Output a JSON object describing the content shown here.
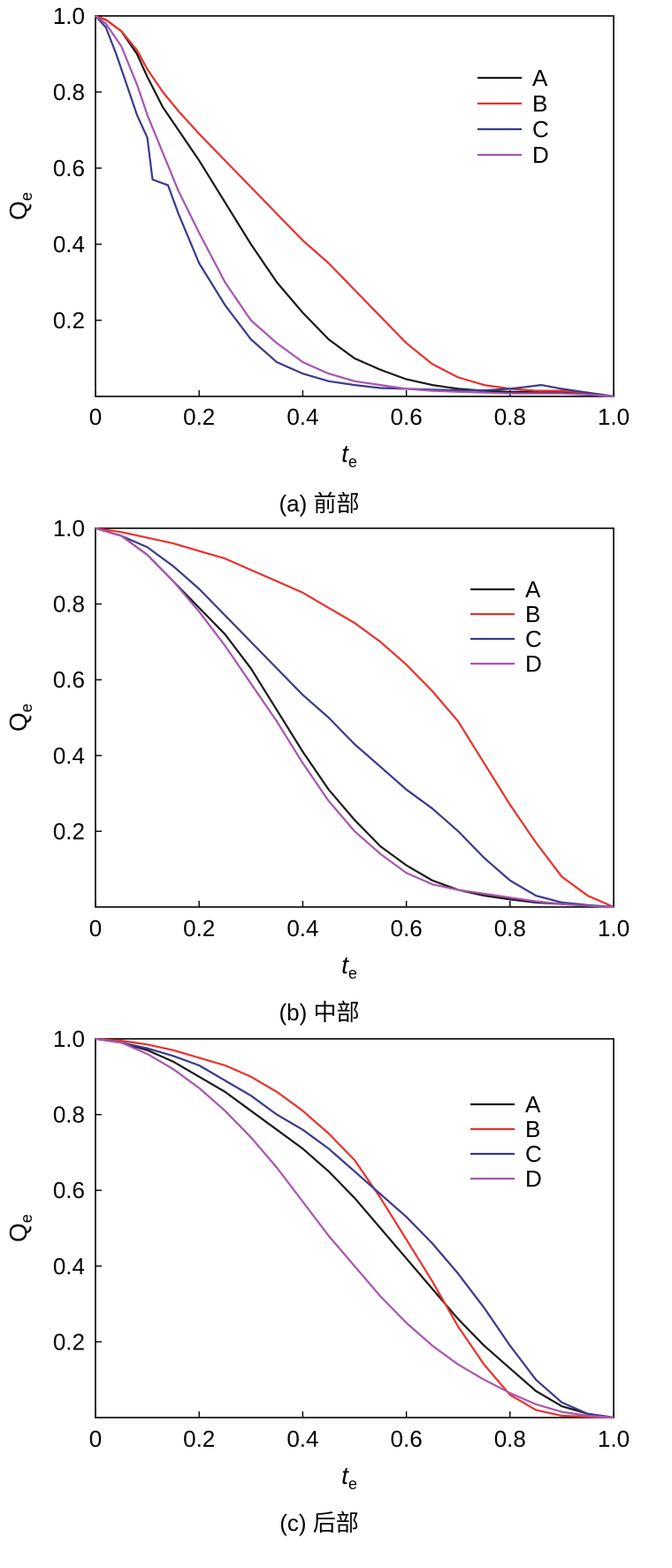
{
  "colors": {
    "A": "#1a1a1a",
    "B": "#e8322b",
    "C": "#3a3a8c",
    "D": "#a855b0"
  },
  "chart_data": [
    {
      "type": "line",
      "caption": "(a) 前部",
      "xlabel": "t",
      "xlabel_sub": "e",
      "ylabel": "Q",
      "ylabel_sub": "e",
      "xlim": [
        0,
        1.0
      ],
      "ylim": [
        0,
        1.0
      ],
      "xticks": [
        "0",
        "0.2",
        "0.4",
        "0.6",
        "0.8",
        "1.0"
      ],
      "yticks": [
        "0.2",
        "0.4",
        "0.6",
        "0.8",
        "1.0"
      ],
      "legend_position": "top-right",
      "series": [
        {
          "name": "A",
          "x": [
            0,
            0.02,
            0.05,
            0.08,
            0.1,
            0.13,
            0.16,
            0.2,
            0.25,
            0.3,
            0.35,
            0.4,
            0.45,
            0.5,
            0.55,
            0.6,
            0.65,
            0.7,
            0.75,
            0.8,
            0.85,
            0.9,
            0.95,
            1.0
          ],
          "y": [
            1.0,
            0.99,
            0.96,
            0.9,
            0.84,
            0.76,
            0.7,
            0.62,
            0.51,
            0.4,
            0.3,
            0.22,
            0.15,
            0.1,
            0.07,
            0.045,
            0.03,
            0.02,
            0.015,
            0.012,
            0.012,
            0.012,
            0.008,
            0.0
          ]
        },
        {
          "name": "B",
          "x": [
            0,
            0.02,
            0.05,
            0.08,
            0.1,
            0.13,
            0.16,
            0.2,
            0.25,
            0.3,
            0.35,
            0.4,
            0.45,
            0.5,
            0.55,
            0.6,
            0.65,
            0.7,
            0.75,
            0.8,
            0.85,
            0.9,
            0.95,
            1.0
          ],
          "y": [
            1.0,
            0.99,
            0.96,
            0.91,
            0.86,
            0.8,
            0.75,
            0.69,
            0.62,
            0.55,
            0.48,
            0.41,
            0.35,
            0.28,
            0.21,
            0.14,
            0.085,
            0.05,
            0.03,
            0.02,
            0.015,
            0.015,
            0.01,
            0.0
          ]
        },
        {
          "name": "C",
          "x": [
            0,
            0.02,
            0.04,
            0.06,
            0.08,
            0.1,
            0.11,
            0.13,
            0.14,
            0.16,
            0.2,
            0.25,
            0.3,
            0.35,
            0.4,
            0.45,
            0.5,
            0.55,
            0.6,
            0.65,
            0.7,
            0.75,
            0.8,
            0.83,
            0.86,
            0.9,
            0.95,
            1.0
          ],
          "y": [
            1.0,
            0.97,
            0.9,
            0.82,
            0.74,
            0.68,
            0.57,
            0.56,
            0.555,
            0.48,
            0.35,
            0.24,
            0.15,
            0.09,
            0.06,
            0.04,
            0.03,
            0.022,
            0.02,
            0.018,
            0.016,
            0.016,
            0.02,
            0.025,
            0.03,
            0.02,
            0.01,
            0.0
          ]
        },
        {
          "name": "D",
          "x": [
            0,
            0.02,
            0.05,
            0.08,
            0.1,
            0.13,
            0.16,
            0.2,
            0.25,
            0.3,
            0.35,
            0.4,
            0.45,
            0.5,
            0.55,
            0.6,
            0.65,
            0.7,
            0.75,
            0.8,
            0.85,
            0.9,
            0.95,
            1.0
          ],
          "y": [
            1.0,
            0.98,
            0.92,
            0.82,
            0.74,
            0.64,
            0.54,
            0.43,
            0.3,
            0.2,
            0.14,
            0.09,
            0.06,
            0.04,
            0.03,
            0.02,
            0.015,
            0.012,
            0.01,
            0.008,
            0.008,
            0.008,
            0.005,
            0.0
          ]
        }
      ]
    },
    {
      "type": "line",
      "caption": "(b) 中部",
      "xlabel": "t",
      "xlabel_sub": "e",
      "ylabel": "Q",
      "ylabel_sub": "e",
      "xlim": [
        0,
        1.0
      ],
      "ylim": [
        0,
        1.0
      ],
      "xticks": [
        "0",
        "0.2",
        "0.4",
        "0.6",
        "0.8",
        "1.0"
      ],
      "yticks": [
        "0.2",
        "0.4",
        "0.6",
        "0.8",
        "1.0"
      ],
      "legend_position": "top-right",
      "series": [
        {
          "name": "A",
          "x": [
            0,
            0.05,
            0.1,
            0.15,
            0.2,
            0.25,
            0.3,
            0.35,
            0.4,
            0.45,
            0.5,
            0.55,
            0.6,
            0.65,
            0.7,
            0.75,
            0.8,
            0.85,
            0.9,
            0.95,
            1.0
          ],
          "y": [
            1.0,
            0.98,
            0.93,
            0.86,
            0.79,
            0.72,
            0.63,
            0.52,
            0.41,
            0.31,
            0.23,
            0.16,
            0.11,
            0.07,
            0.045,
            0.03,
            0.02,
            0.012,
            0.008,
            0.004,
            0.0
          ]
        },
        {
          "name": "B",
          "x": [
            0,
            0.05,
            0.1,
            0.15,
            0.2,
            0.25,
            0.3,
            0.35,
            0.4,
            0.45,
            0.5,
            0.55,
            0.6,
            0.65,
            0.7,
            0.75,
            0.8,
            0.85,
            0.9,
            0.95,
            1.0
          ],
          "y": [
            1.0,
            0.99,
            0.975,
            0.96,
            0.94,
            0.92,
            0.89,
            0.86,
            0.83,
            0.79,
            0.75,
            0.7,
            0.64,
            0.57,
            0.49,
            0.38,
            0.27,
            0.17,
            0.08,
            0.03,
            0.0
          ]
        },
        {
          "name": "C",
          "x": [
            0,
            0.05,
            0.1,
            0.15,
            0.2,
            0.25,
            0.3,
            0.35,
            0.4,
            0.45,
            0.5,
            0.55,
            0.6,
            0.65,
            0.7,
            0.75,
            0.8,
            0.85,
            0.9,
            0.95,
            1.0
          ],
          "y": [
            1.0,
            0.98,
            0.95,
            0.9,
            0.84,
            0.77,
            0.7,
            0.63,
            0.56,
            0.5,
            0.43,
            0.37,
            0.31,
            0.26,
            0.2,
            0.13,
            0.07,
            0.03,
            0.012,
            0.005,
            0.0
          ]
        },
        {
          "name": "D",
          "x": [
            0,
            0.05,
            0.1,
            0.15,
            0.2,
            0.25,
            0.3,
            0.35,
            0.4,
            0.45,
            0.5,
            0.55,
            0.6,
            0.65,
            0.7,
            0.75,
            0.8,
            0.85,
            0.9,
            0.95,
            1.0
          ],
          "y": [
            1.0,
            0.98,
            0.93,
            0.86,
            0.78,
            0.69,
            0.59,
            0.49,
            0.38,
            0.28,
            0.2,
            0.14,
            0.09,
            0.06,
            0.045,
            0.035,
            0.025,
            0.015,
            0.008,
            0.003,
            0.0
          ]
        }
      ]
    },
    {
      "type": "line",
      "caption": "(c) 后部",
      "xlabel": "t",
      "xlabel_sub": "e",
      "ylabel": "Q",
      "ylabel_sub": "e",
      "xlim": [
        0,
        1.0
      ],
      "ylim": [
        0,
        1.0
      ],
      "xticks": [
        "0",
        "0.2",
        "0.4",
        "0.6",
        "0.8",
        "1.0"
      ],
      "yticks": [
        "0.2",
        "0.4",
        "0.6",
        "0.8",
        "1.0"
      ],
      "legend_position": "top-right",
      "series": [
        {
          "name": "A",
          "x": [
            0,
            0.05,
            0.1,
            0.15,
            0.2,
            0.25,
            0.3,
            0.35,
            0.4,
            0.45,
            0.5,
            0.55,
            0.6,
            0.65,
            0.7,
            0.75,
            0.8,
            0.85,
            0.9,
            0.95,
            1.0
          ],
          "y": [
            1.0,
            0.99,
            0.97,
            0.94,
            0.9,
            0.86,
            0.81,
            0.76,
            0.71,
            0.65,
            0.58,
            0.5,
            0.42,
            0.34,
            0.26,
            0.19,
            0.13,
            0.07,
            0.03,
            0.01,
            0.0
          ]
        },
        {
          "name": "B",
          "x": [
            0,
            0.05,
            0.1,
            0.15,
            0.2,
            0.25,
            0.3,
            0.35,
            0.4,
            0.45,
            0.5,
            0.55,
            0.6,
            0.65,
            0.7,
            0.75,
            0.8,
            0.85,
            0.9,
            0.95,
            1.0
          ],
          "y": [
            1.0,
            0.995,
            0.985,
            0.97,
            0.95,
            0.93,
            0.9,
            0.86,
            0.81,
            0.75,
            0.68,
            0.58,
            0.47,
            0.36,
            0.24,
            0.14,
            0.06,
            0.02,
            0.005,
            0.002,
            0.0
          ]
        },
        {
          "name": "C",
          "x": [
            0,
            0.05,
            0.1,
            0.15,
            0.2,
            0.25,
            0.3,
            0.35,
            0.4,
            0.45,
            0.5,
            0.55,
            0.6,
            0.65,
            0.7,
            0.75,
            0.8,
            0.85,
            0.9,
            0.95,
            1.0
          ],
          "y": [
            1.0,
            0.99,
            0.975,
            0.955,
            0.93,
            0.89,
            0.85,
            0.8,
            0.76,
            0.71,
            0.65,
            0.59,
            0.53,
            0.46,
            0.38,
            0.29,
            0.19,
            0.1,
            0.04,
            0.01,
            0.0
          ]
        },
        {
          "name": "D",
          "x": [
            0,
            0.05,
            0.1,
            0.15,
            0.2,
            0.25,
            0.3,
            0.35,
            0.4,
            0.45,
            0.5,
            0.55,
            0.6,
            0.65,
            0.7,
            0.75,
            0.8,
            0.85,
            0.9,
            0.95,
            1.0
          ],
          "y": [
            1.0,
            0.99,
            0.96,
            0.92,
            0.87,
            0.81,
            0.74,
            0.66,
            0.57,
            0.48,
            0.4,
            0.32,
            0.25,
            0.19,
            0.14,
            0.1,
            0.065,
            0.035,
            0.015,
            0.005,
            0.0
          ]
        }
      ]
    }
  ]
}
